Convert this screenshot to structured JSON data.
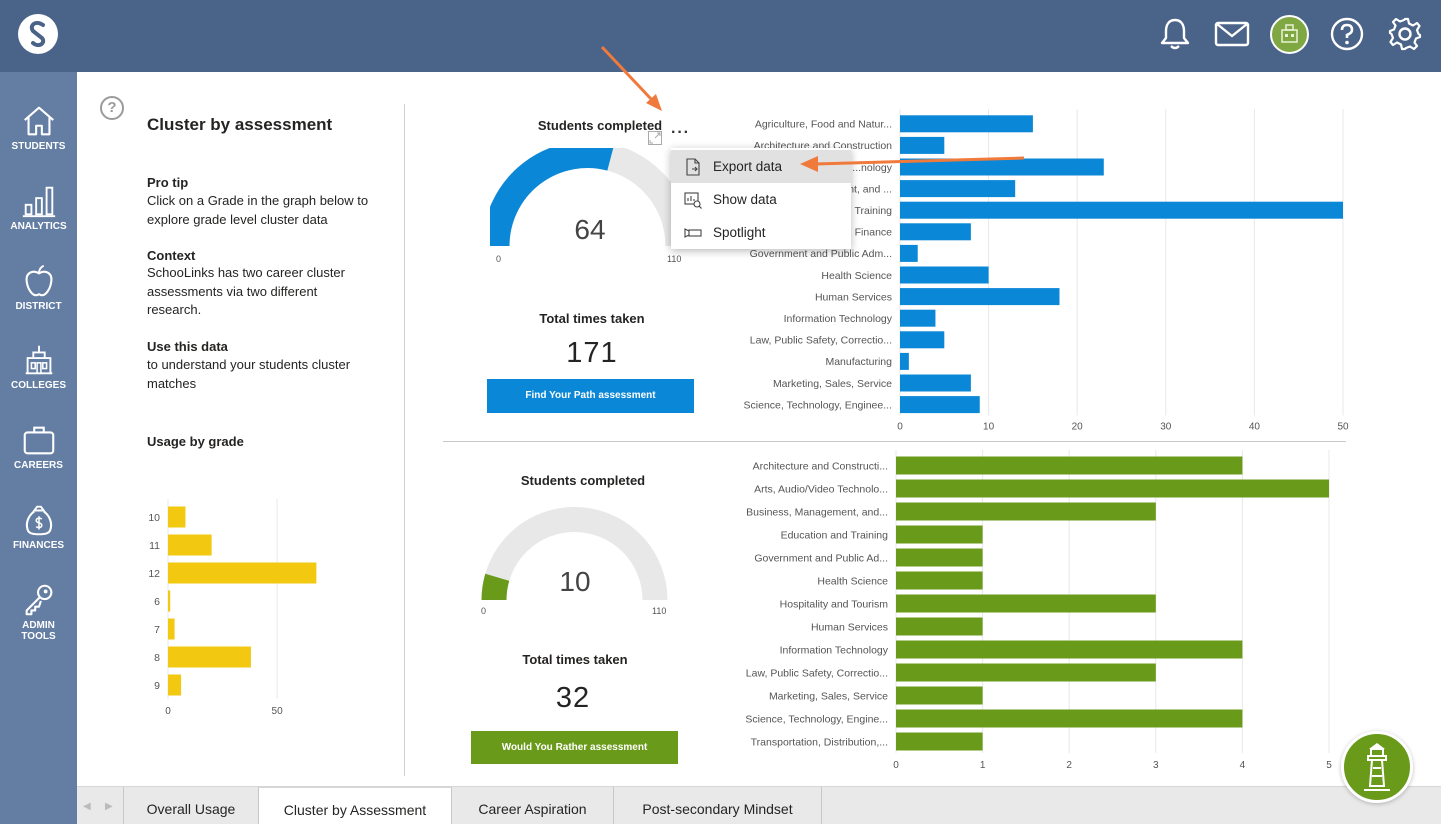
{
  "sidenav": {
    "items": [
      {
        "label": "STUDENTS",
        "icon": "home-icon"
      },
      {
        "label": "ANALYTICS",
        "icon": "bar-chart-icon"
      },
      {
        "label": "DISTRICT",
        "icon": "apple-icon"
      },
      {
        "label": "COLLEGES",
        "icon": "college-building-icon"
      },
      {
        "label": "CAREERS",
        "icon": "briefcase-icon"
      },
      {
        "label": "FINANCES",
        "icon": "money-bag-icon"
      },
      {
        "label": "ADMIN",
        "label2": "TOOLS",
        "icon": "key-icon"
      }
    ]
  },
  "sidebar": {
    "title": "Cluster by assessment",
    "pro_tip_heading": "Pro tip",
    "pro_tip_text": "Click on a Grade in the graph below to explore grade level cluster data",
    "context_heading": "Context",
    "context_text": "SchooLinks has two career cluster assessments via two different research.",
    "use_heading": "Use this data",
    "use_text": "to understand your students cluster matches",
    "usage_heading": "Usage by grade",
    "help_glyph": "?"
  },
  "assessment1": {
    "students_completed_label": "Students completed",
    "gauge_value": "64",
    "gauge_min": "0",
    "gauge_max": "110",
    "times_taken_label": "Total times taken",
    "times_taken_value": "171",
    "button_label": "Find Your Path assessment",
    "menu_dots": "···",
    "color": "#0a87d6"
  },
  "assessment2": {
    "students_completed_label": "Students completed",
    "gauge_value": "10",
    "gauge_min": "0",
    "gauge_max": "110",
    "times_taken_label": "Total times taken",
    "times_taken_value": "32",
    "button_label": "Would You Rather assessment",
    "color": "#6a9a1a"
  },
  "context_menu": {
    "items": [
      {
        "label": "Export data",
        "icon": "export-file-icon"
      },
      {
        "label": "Show data",
        "icon": "show-data-icon"
      },
      {
        "label": "Spotlight",
        "icon": "spotlight-icon"
      }
    ]
  },
  "tabs": [
    {
      "label": "Overall Usage"
    },
    {
      "label": "Cluster by Assessment"
    },
    {
      "label": "Career Aspiration"
    },
    {
      "label": "Post-secondary Mindset"
    }
  ],
  "chart_data": [
    {
      "type": "bar",
      "orientation": "horizontal",
      "categories": [
        "10",
        "11",
        "12",
        "6",
        "7",
        "8",
        "9"
      ],
      "values": [
        8,
        20,
        68,
        1,
        3,
        38,
        6
      ],
      "xlim": [
        0,
        110
      ],
      "x_ticks": [
        "0",
        "50"
      ],
      "color": "#f2c811"
    },
    {
      "type": "bar",
      "orientation": "horizontal",
      "categories": [
        "Agriculture, Food and Natur...",
        "Architecture and Construction",
        "...nology",
        "...nt, and ...",
        "Training",
        "Finance",
        "Government and Public Adm...",
        "Health Science",
        "Human Services",
        "Information Technology",
        "Law, Public Safety, Correctio...",
        "Manufacturing",
        "Marketing, Sales, Service",
        "Science, Technology, Enginee..."
      ],
      "values": [
        15,
        5,
        23,
        13,
        50,
        8,
        2,
        10,
        18,
        4,
        5,
        1,
        8,
        9
      ],
      "xlim": [
        0,
        50
      ],
      "x_ticks": [
        "0",
        "10",
        "20",
        "30",
        "40",
        "50"
      ],
      "color": "#0a87d6"
    },
    {
      "type": "bar",
      "orientation": "horizontal",
      "categories": [
        "Architecture and Constructi...",
        "Arts, Audio/Video Technolo...",
        "Business, Management, and...",
        "Education and Training",
        "Government and Public Ad...",
        "Health Science",
        "Hospitality and Tourism",
        "Human Services",
        "Information Technology",
        "Law, Public Safety, Correctio...",
        "Marketing, Sales, Service",
        "Science, Technology, Engine...",
        "Transportation, Distribution,..."
      ],
      "values": [
        4,
        5,
        3,
        1,
        1,
        1,
        3,
        1,
        4,
        3,
        1,
        4,
        1
      ],
      "xlim": [
        0,
        5
      ],
      "x_ticks": [
        "0",
        "1",
        "2",
        "3",
        "4",
        "5"
      ],
      "color": "#6a9a1a"
    }
  ]
}
